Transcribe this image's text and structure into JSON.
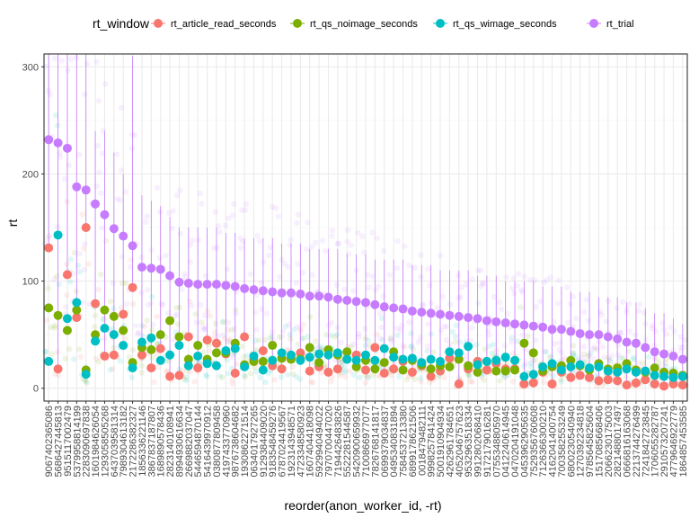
{
  "chart_data": {
    "type": "scatter",
    "xlabel": "reorder(anon_worker_id, -rt)",
    "ylabel": "rt",
    "ylim": [
      -12,
      312
    ],
    "yticks": [
      0,
      100,
      200,
      300
    ],
    "grid": true,
    "legend_title": "rt_window",
    "legend_position": "top",
    "series": [
      {
        "name": "rt_article_read_seconds",
        "color": "#F8766D"
      },
      {
        "name": "rt_qs_noimage_seconds",
        "color": "#7CAE00"
      },
      {
        "name": "rt_qs_wimage_seconds",
        "color": "#00BFC4"
      },
      {
        "name": "rt_trial",
        "color": "#C77CFF"
      }
    ],
    "workers": [
      {
        "id": "9067402365086",
        "trial": 232,
        "trial_hi": 312,
        "article": 131,
        "noimage": 75,
        "wimage": 25
      },
      {
        "id": "5686427445813",
        "trial": 229,
        "trial_hi": 312,
        "article": 18,
        "noimage": 68,
        "wimage": 143
      },
      {
        "id": "9515117002479",
        "trial": 224,
        "trial_hi": 312,
        "article": 106,
        "noimage": 54,
        "wimage": 65
      },
      {
        "id": "5379958814199",
        "trial": 188,
        "trial_hi": 312,
        "article": 66,
        "noimage": 73,
        "wimage": 80
      },
      {
        "id": "2283090697838",
        "trial": 185,
        "trial_hi": 312,
        "article": 150,
        "noimage": 17,
        "wimage": 13
      },
      {
        "id": "1601984626054",
        "trial": 172,
        "trial_hi": 240,
        "article": 79,
        "noimage": 50,
        "wimage": 44
      },
      {
        "id": "1293058505268",
        "trial": 162,
        "trial_hi": 240,
        "article": 30,
        "noimage": 73,
        "wimage": 56
      },
      {
        "id": "6437039581314",
        "trial": 149,
        "trial_hi": 220,
        "article": 31,
        "noimage": 67,
        "wimage": 50
      },
      {
        "id": "7989304613182",
        "trial": 142,
        "trial_hi": 200,
        "article": 69,
        "noimage": 54,
        "wimage": 40
      },
      {
        "id": "2172286382327",
        "trial": 133,
        "trial_hi": 310,
        "article": 94,
        "noimage": 24,
        "wimage": 19
      },
      {
        "id": "1856336221146",
        "trial": 113,
        "trial_hi": 180,
        "article": 31,
        "noimage": 38,
        "wimage": 43
      },
      {
        "id": "3867837187807",
        "trial": 112,
        "trial_hi": 175,
        "article": 19,
        "noimage": 36,
        "wimage": 47
      },
      {
        "id": "1689890578436",
        "trial": 111,
        "trial_hi": 170,
        "article": 37,
        "noimage": 50,
        "wimage": 26
      },
      {
        "id": "2823140108941",
        "trial": 105,
        "trial_hi": 160,
        "article": 11,
        "noimage": 63,
        "wimage": 31
      },
      {
        "id": "8994930616634",
        "trial": 99,
        "trial_hi": 150,
        "article": 12,
        "noimage": 48,
        "wimage": 40
      },
      {
        "id": "2669882037047",
        "trial": 98,
        "trial_hi": 150,
        "article": 48,
        "noimage": 27,
        "wimage": 21
      },
      {
        "id": "5446594870144",
        "trial": 97,
        "trial_hi": 150,
        "article": 19,
        "noimage": 40,
        "wimage": 30
      },
      {
        "id": "5416439970912",
        "trial": 97,
        "trial_hi": 150,
        "article": 45,
        "noimage": 27,
        "wimage": 23
      },
      {
        "id": "0380877809458",
        "trial": 97,
        "trial_hi": 150,
        "article": 42,
        "noimage": 33,
        "wimage": 21
      },
      {
        "id": "4197433770960",
        "trial": 96,
        "trial_hi": 145,
        "article": 32,
        "noimage": 33,
        "wimage": 35
      },
      {
        "id": "9876738604682",
        "trial": 95,
        "trial_hi": 145,
        "article": 14,
        "noimage": 42,
        "wimage": 37
      },
      {
        "id": "1930862271514",
        "trial": 93,
        "trial_hi": 140,
        "article": 48,
        "noimage": 22,
        "wimage": 20
      },
      {
        "id": "0634017927265",
        "trial": 92,
        "trial_hi": 140,
        "article": 27,
        "noimage": 25,
        "wimage": 30
      },
      {
        "id": "9129384409020",
        "trial": 91,
        "trial_hi": 140,
        "article": 35,
        "noimage": 25,
        "wimage": 17
      },
      {
        "id": "9183548459276",
        "trial": 90,
        "trial_hi": 140,
        "article": 21,
        "noimage": 40,
        "wimage": 26
      },
      {
        "id": "6787024419567",
        "trial": 89,
        "trial_hi": 135,
        "article": 18,
        "noimage": 28,
        "wimage": 33
      },
      {
        "id": "1923143948571",
        "trial": 89,
        "trial_hi": 135,
        "article": 28,
        "noimage": 27,
        "wimage": 31
      },
      {
        "id": "4723348580923",
        "trial": 88,
        "trial_hi": 135,
        "article": 33,
        "noimage": 27,
        "wimage": 26
      },
      {
        "id": "1607404418098",
        "trial": 86,
        "trial_hi": 130,
        "article": 16,
        "noimage": 38,
        "wimage": 29
      },
      {
        "id": "5929940494022",
        "trial": 86,
        "trial_hi": 130,
        "article": 20,
        "noimage": 24,
        "wimage": 32
      },
      {
        "id": "7970700447020",
        "trial": 85,
        "trial_hi": 130,
        "article": 15,
        "noimage": 36,
        "wimage": 31
      },
      {
        "id": "7194426483826",
        "trial": 83,
        "trial_hi": 130,
        "article": 18,
        "noimage": 31,
        "wimage": 33
      },
      {
        "id": "5522281544587",
        "trial": 82,
        "trial_hi": 125,
        "article": 27,
        "noimage": 34,
        "wimage": 27
      },
      {
        "id": "5420900659932",
        "trial": 81,
        "trial_hi": 125,
        "article": 31,
        "noimage": 20,
        "wimage": 26
      },
      {
        "id": "7100866977077",
        "trial": 80,
        "trial_hi": 125,
        "article": 17,
        "noimage": 26,
        "wimage": 31
      },
      {
        "id": "7826768141817",
        "trial": 78,
        "trial_hi": 120,
        "article": 38,
        "noimage": 18,
        "wimage": 26
      },
      {
        "id": "0699379034837",
        "trial": 76,
        "trial_hi": 120,
        "article": 14,
        "noimage": 24,
        "wimage": 37
      },
      {
        "id": "0495340831894",
        "trial": 75,
        "trial_hi": 120,
        "article": 18,
        "noimage": 34,
        "wimage": 29
      },
      {
        "id": "7584537213380",
        "trial": 74,
        "trial_hi": 120,
        "article": 25,
        "noimage": 17,
        "wimage": 27
      },
      {
        "id": "6899178621506",
        "trial": 72,
        "trial_hi": 115,
        "article": 15,
        "noimage": 26,
        "wimage": 28
      },
      {
        "id": "0018479482111",
        "trial": 71,
        "trial_hi": 115,
        "article": 21,
        "noimage": 22,
        "wimage": 24
      },
      {
        "id": "9998257841424",
        "trial": 70,
        "trial_hi": 115,
        "article": 11,
        "noimage": 18,
        "wimage": 27
      },
      {
        "id": "5001910904934",
        "trial": 69,
        "trial_hi": 110,
        "article": 16,
        "noimage": 21,
        "wimage": 25
      },
      {
        "id": "4262961784651",
        "trial": 68,
        "trial_hi": 110,
        "article": 28,
        "noimage": 20,
        "wimage": 34
      },
      {
        "id": "4052046757623",
        "trial": 67,
        "trial_hi": 110,
        "article": 4,
        "noimage": 27,
        "wimage": 33
      },
      {
        "id": "9532963518334",
        "trial": 66,
        "trial_hi": 110,
        "article": 18,
        "noimage": 21,
        "wimage": 39
      },
      {
        "id": "9912802068410",
        "trial": 65,
        "trial_hi": 105,
        "article": 25,
        "noimage": 15,
        "wimage": 22
      },
      {
        "id": "9172179016281",
        "trial": 63,
        "trial_hi": 105,
        "article": 17,
        "noimage": 25,
        "wimage": 25
      },
      {
        "id": "0755348805970",
        "trial": 62,
        "trial_hi": 105,
        "article": 23,
        "noimage": 16,
        "wimage": 26
      },
      {
        "id": "0412240614945",
        "trial": 61,
        "trial_hi": 100,
        "article": 18,
        "noimage": 16,
        "wimage": 29
      },
      {
        "id": "0470204191048",
        "trial": 60,
        "trial_hi": 100,
        "article": 18,
        "noimage": 17,
        "wimage": 26
      },
      {
        "id": "0453962905635",
        "trial": 59,
        "trial_hi": 100,
        "article": 4,
        "noimage": 42,
        "wimage": 11
      },
      {
        "id": "7529356760608",
        "trial": 58,
        "trial_hi": 100,
        "article": 5,
        "noimage": 33,
        "wimage": 13
      },
      {
        "id": "7126366300210",
        "trial": 57,
        "trial_hi": 95,
        "article": 15,
        "noimage": 16,
        "wimage": 20
      },
      {
        "id": "4162041400754",
        "trial": 55,
        "trial_hi": 95,
        "article": 4,
        "noimage": 20,
        "wimage": 23
      },
      {
        "id": "7003582553249",
        "trial": 55,
        "trial_hi": 95,
        "article": 15,
        "noimage": 21,
        "wimage": 17
      },
      {
        "id": "6800230540940",
        "trial": 53,
        "trial_hi": 90,
        "article": 10,
        "noimage": 26,
        "wimage": 20
      },
      {
        "id": "1270392234818",
        "trial": 51,
        "trial_hi": 90,
        "article": 12,
        "noimage": 21,
        "wimage": 22
      },
      {
        "id": "9785645825604",
        "trial": 50,
        "trial_hi": 90,
        "article": 10,
        "noimage": 17,
        "wimage": 19
      },
      {
        "id": "1517085668406",
        "trial": 50,
        "trial_hi": 85,
        "article": 7,
        "noimage": 23,
        "wimage": 20
      },
      {
        "id": "2066230175003",
        "trial": 48,
        "trial_hi": 85,
        "article": 8,
        "noimage": 18,
        "wimage": 16
      },
      {
        "id": "2821488017497",
        "trial": 46,
        "trial_hi": 85,
        "article": 7,
        "noimage": 19,
        "wimage": 15
      },
      {
        "id": "0666816163068",
        "trial": 43,
        "trial_hi": 80,
        "article": 3,
        "noimage": 23,
        "wimage": 18
      },
      {
        "id": "2213744276499",
        "trial": 42,
        "trial_hi": 80,
        "article": 5,
        "noimage": 17,
        "wimage": 15
      },
      {
        "id": "7241842723845",
        "trial": 38,
        "trial_hi": 75,
        "article": 8,
        "noimage": 15,
        "wimage": 16
      },
      {
        "id": "1706055282787",
        "trial": 34,
        "trial_hi": 70,
        "article": 4,
        "noimage": 19,
        "wimage": 12
      },
      {
        "id": "2910573207241",
        "trial": 32,
        "trial_hi": 70,
        "article": 2,
        "noimage": 15,
        "wimage": 11
      },
      {
        "id": "4779646922779",
        "trial": 30,
        "trial_hi": 65,
        "article": 4,
        "noimage": 14,
        "wimage": 10
      },
      {
        "id": "1864857453585",
        "trial": 27,
        "trial_hi": 60,
        "article": 3,
        "noimage": 12,
        "wimage": 11
      }
    ]
  }
}
